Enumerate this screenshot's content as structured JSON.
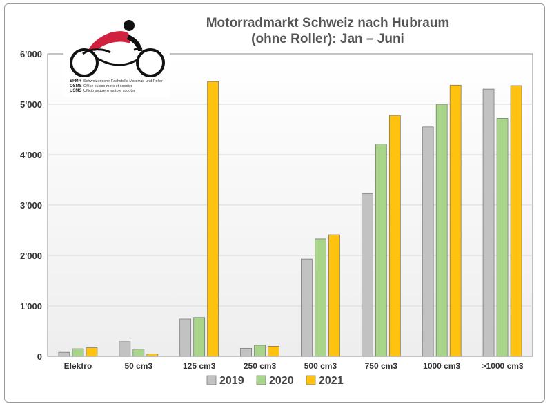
{
  "logo": {
    "rows": [
      {
        "abbr": "SFMR",
        "text": "Schweizerische Fachstelle Motorrad und Roller"
      },
      {
        "abbr": "OSMS",
        "text": "Office suisse moto et scooter"
      },
      {
        "abbr": "USMS",
        "text": "Ufficio svizzero moto e scooter"
      }
    ],
    "colors": {
      "accent": "#d0213f",
      "dark": "#111111"
    }
  },
  "chart_data": {
    "type": "bar",
    "title": [
      "Motorradmarkt Schweiz nach Hubraum",
      "(ohne Roller): Jan – Juni"
    ],
    "xlabel": "",
    "ylabel": "",
    "categories": [
      "Elektro",
      "50 cm3",
      "125 cm3",
      "250 cm3",
      "500 cm3",
      "750 cm3",
      "1000 cm3",
      ">1000 cm3"
    ],
    "yticks": [
      0,
      1000,
      2000,
      3000,
      4000,
      5000,
      6000
    ],
    "ytick_labels": [
      "0",
      "1'000",
      "2'000",
      "3'000",
      "4'000",
      "5'000",
      "6'000"
    ],
    "ylim": [
      0,
      6000
    ],
    "grid": true,
    "legend": "bottom",
    "series": [
      {
        "name": "2019",
        "color": "#c2c2c2",
        "values": [
          80,
          290,
          740,
          160,
          1930,
          3230,
          4550,
          5300
        ]
      },
      {
        "name": "2020",
        "color": "#a8d58a",
        "values": [
          150,
          140,
          770,
          220,
          2330,
          4210,
          5000,
          4720
        ]
      },
      {
        "name": "2021",
        "color": "#ffc20e",
        "values": [
          170,
          50,
          5450,
          200,
          2410,
          4780,
          5380,
          5370
        ]
      }
    ]
  }
}
